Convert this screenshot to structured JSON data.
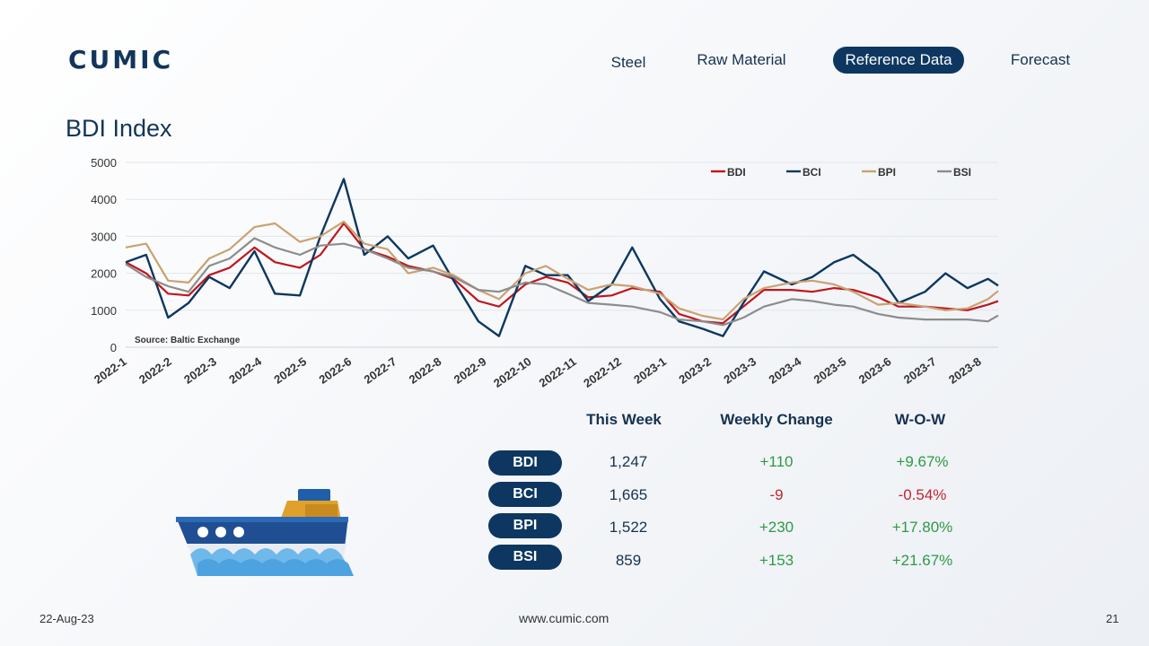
{
  "brand": {
    "logo_text": "CUMIC"
  },
  "nav": {
    "items": [
      {
        "label": "Steel",
        "active": false
      },
      {
        "label": "Raw Material",
        "active": false
      },
      {
        "label": "Reference Data",
        "active": true
      },
      {
        "label": "Forecast",
        "active": false
      }
    ]
  },
  "page_title": "BDI Index",
  "chart_data": {
    "type": "line",
    "title": "",
    "source_note": "Source: Baltic Exchange",
    "xlabel": "",
    "ylabel": "",
    "ylim": [
      0,
      5000
    ],
    "yticks": [
      0,
      1000,
      2000,
      3000,
      4000,
      5000
    ],
    "grid": true,
    "legend_position": "top-right",
    "x_tick_labels": [
      "2022-1",
      "2022-2",
      "2022-3",
      "2022-4",
      "2022-5",
      "2022-6",
      "2022-7",
      "2022-8",
      "2022-9",
      "2022-10",
      "2022-11",
      "2022-12",
      "2023-1",
      "2023-2",
      "2023-3",
      "2023-4",
      "2023-5",
      "2023-6",
      "2023-7",
      "2023-8"
    ],
    "x": [
      "2022-01-03",
      "2022-01-17",
      "2022-02-01",
      "2022-02-15",
      "2022-03-01",
      "2022-03-15",
      "2022-04-01",
      "2022-04-15",
      "2022-05-02",
      "2022-05-16",
      "2022-06-01",
      "2022-06-15",
      "2022-07-01",
      "2022-07-15",
      "2022-08-01",
      "2022-08-15",
      "2022-09-01",
      "2022-09-15",
      "2022-10-03",
      "2022-10-17",
      "2022-11-01",
      "2022-11-15",
      "2022-12-01",
      "2022-12-15",
      "2023-01-03",
      "2023-01-16",
      "2023-02-01",
      "2023-02-15",
      "2023-03-01",
      "2023-03-15",
      "2023-04-03",
      "2023-04-17",
      "2023-05-02",
      "2023-05-15",
      "2023-06-01",
      "2023-06-15",
      "2023-07-03",
      "2023-07-17",
      "2023-08-01",
      "2023-08-15",
      "2023-08-22"
    ],
    "series": [
      {
        "name": "BDI",
        "color": "#c0161c",
        "values": [
          2300,
          2000,
          1450,
          1400,
          1950,
          2150,
          2700,
          2300,
          2150,
          2500,
          3350,
          2650,
          2450,
          2200,
          2050,
          1850,
          1250,
          1100,
          1700,
          1900,
          1750,
          1350,
          1400,
          1600,
          1500,
          900,
          700,
          650,
          1100,
          1550,
          1550,
          1500,
          1600,
          1550,
          1350,
          1100,
          1100,
          1050,
          1000,
          1150,
          1247
        ]
      },
      {
        "name": "BCI",
        "color": "#0d3760",
        "values": [
          2300,
          2500,
          800,
          1200,
          1900,
          1600,
          2600,
          1450,
          1400,
          3000,
          4550,
          2500,
          3000,
          2400,
          2750,
          1800,
          700,
          300,
          2200,
          1950,
          1950,
          1250,
          1700,
          2700,
          1300,
          700,
          500,
          300,
          1200,
          2050,
          1700,
          1900,
          2300,
          2500,
          2000,
          1200,
          1500,
          2000,
          1600,
          1850,
          1665
        ]
      },
      {
        "name": "BPI",
        "color": "#c9a271",
        "values": [
          2700,
          2800,
          1800,
          1750,
          2400,
          2650,
          3250,
          3350,
          2850,
          3000,
          3400,
          2800,
          2650,
          2000,
          2150,
          1950,
          1550,
          1300,
          2000,
          2200,
          1850,
          1550,
          1700,
          1650,
          1450,
          1050,
          850,
          750,
          1300,
          1600,
          1750,
          1800,
          1700,
          1500,
          1150,
          1200,
          1100,
          1000,
          1050,
          1300,
          1522
        ]
      },
      {
        "name": "BSI",
        "color": "#8c8c8c",
        "values": [
          2250,
          1900,
          1650,
          1500,
          2200,
          2400,
          2950,
          2700,
          2500,
          2750,
          2800,
          2650,
          2400,
          2150,
          2050,
          1900,
          1550,
          1500,
          1750,
          1700,
          1450,
          1200,
          1150,
          1100,
          950,
          750,
          700,
          600,
          800,
          1100,
          1300,
          1250,
          1150,
          1100,
          900,
          800,
          750,
          750,
          750,
          700,
          859
        ]
      }
    ]
  },
  "table": {
    "headers": {
      "this_week": "This Week",
      "weekly_change": "Weekly Change",
      "wow": "W-O-W"
    },
    "rows": [
      {
        "index": "BDI",
        "this_week": "1,247",
        "weekly_change": "+110",
        "wow": "+9.67%",
        "trend": "up"
      },
      {
        "index": "BCI",
        "this_week": "1,665",
        "weekly_change": "-9",
        "wow": "-0.54%",
        "trend": "down"
      },
      {
        "index": "BPI",
        "this_week": "1,522",
        "weekly_change": "+230",
        "wow": "+17.80%",
        "trend": "up"
      },
      {
        "index": "BSI",
        "this_week": "859",
        "weekly_change": "+153",
        "wow": "+21.67%",
        "trend": "up"
      }
    ]
  },
  "ship_icon": "cargo-ship-icon",
  "footer": {
    "date": "22-Aug-23",
    "website": "www.cumic.com",
    "page_number": "21"
  }
}
